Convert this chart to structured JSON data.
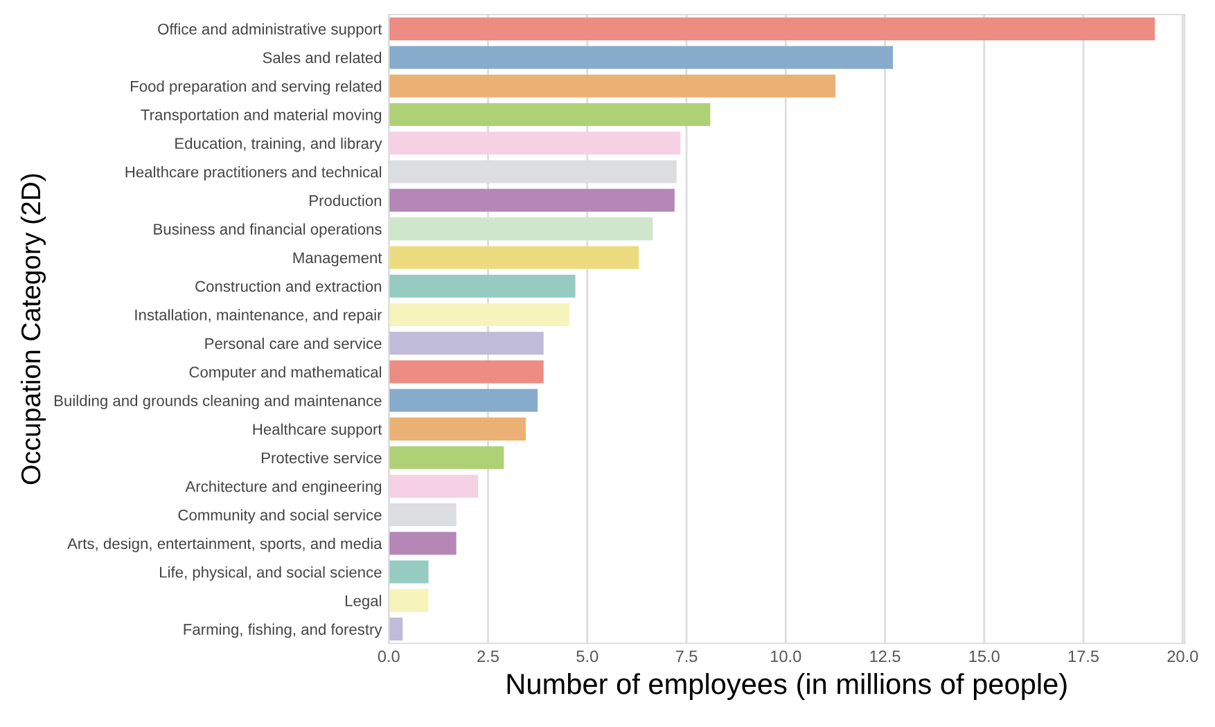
{
  "chart_data": {
    "type": "bar",
    "orientation": "horizontal",
    "xlabel": "Number of employees (in millions of people)",
    "ylabel": "Occupation Category (2D)",
    "categories": [
      "Office and administrative support",
      "Sales and related",
      "Food preparation and serving related",
      "Transportation and material moving",
      "Education, training, and library",
      "Healthcare practitioners and technical",
      "Production",
      "Business and financial operations",
      "Management",
      "Construction and extraction",
      "Installation, maintenance, and repair",
      "Personal care and service",
      "Computer and mathematical",
      "Building and grounds cleaning and maintenance",
      "Healthcare support",
      "Protective service",
      "Architecture and engineering",
      "Community and social service",
      "Arts, design, entertainment, sports, and media",
      "Life, physical, and social science",
      "Legal",
      "Farming, fishing, and forestry"
    ],
    "values": [
      19.3,
      12.7,
      11.25,
      8.1,
      7.35,
      7.25,
      7.2,
      6.65,
      6.3,
      4.7,
      4.55,
      3.9,
      3.9,
      3.75,
      3.45,
      2.9,
      2.25,
      1.7,
      1.7,
      1.0,
      1.0,
      0.35
    ],
    "colors": [
      "#ec8c82",
      "#87abca",
      "#ebb073",
      "#afd176",
      "#f5d1e3",
      "#dcdddf",
      "#b487b7",
      "#d0e6cc",
      "#ecdc7f",
      "#95cbc1",
      "#f6f4bb",
      "#bfbbd9",
      "#ec8c82",
      "#87abca",
      "#ebb073",
      "#afd176",
      "#f5d1e3",
      "#dcdddf",
      "#b487b7",
      "#95cbc1",
      "#f6f4bb",
      "#bfbbd9"
    ],
    "xlim": [
      0,
      20.05
    ],
    "xticks": [
      {
        "value": 0,
        "label": "0.0"
      },
      {
        "value": 2.5,
        "label": "2.5"
      },
      {
        "value": 5,
        "label": "5.0"
      },
      {
        "value": 7.5,
        "label": "7.5"
      },
      {
        "value": 10,
        "label": "10.0"
      },
      {
        "value": 12.5,
        "label": "12.5"
      },
      {
        "value": 15,
        "label": "15.0"
      },
      {
        "value": 17.5,
        "label": "17.5"
      },
      {
        "value": 20,
        "label": "20.0"
      }
    ],
    "grid": "x",
    "legend": false
  }
}
